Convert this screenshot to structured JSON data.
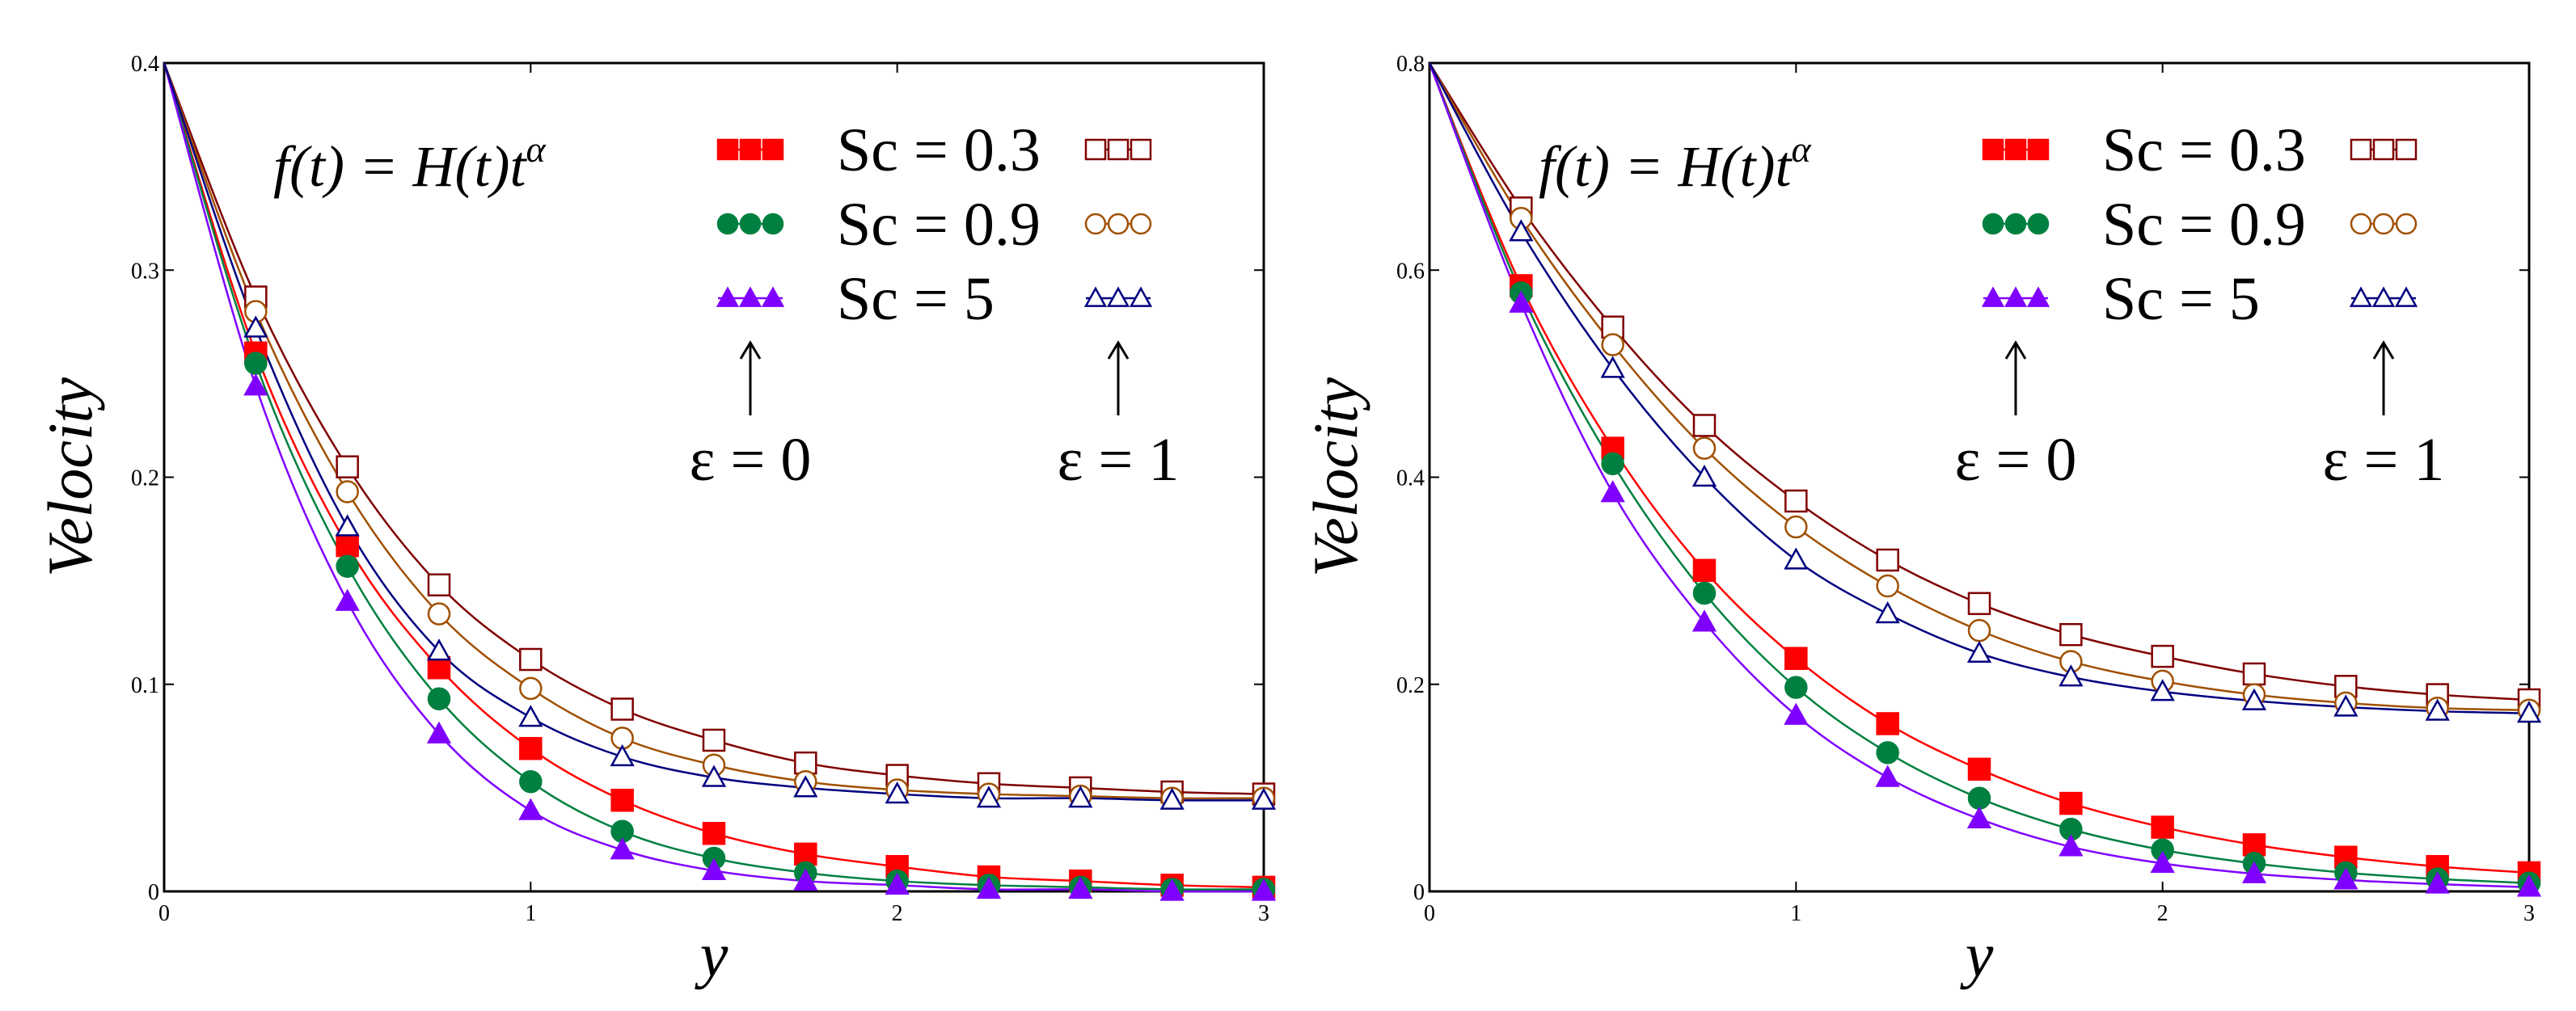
{
  "chart_data": [
    {
      "type": "line",
      "xlabel": "y",
      "ylabel": "Velocity",
      "xlim": [
        0,
        3
      ],
      "ylim": [
        0,
        0.4
      ],
      "x_ticks": [
        "0",
        "1",
        "2",
        "3"
      ],
      "y_ticks": [
        "0",
        "0.1",
        "0.2",
        "0.3",
        "0.4"
      ],
      "annotation": "f(t) = H(t)t^α",
      "eps0_label": "ε = 0",
      "eps1_label": "ε = 1",
      "legend": [
        "Sc = 0.3",
        "Sc = 0.9",
        "Sc = 5"
      ],
      "x": [
        0,
        0.25,
        0.5,
        0.75,
        1.0,
        1.25,
        1.5,
        1.75,
        2.0,
        2.25,
        2.5,
        2.75,
        3.0
      ],
      "series": [
        {
          "name": "Sc = 0.3, ε = 0",
          "color": "#ff0000",
          "marker": "filled-square",
          "values": [
            0.4,
            0.26,
            0.167,
            0.108,
            0.069,
            0.044,
            0.028,
            0.018,
            0.012,
            0.007,
            0.005,
            0.003,
            0.002
          ]
        },
        {
          "name": "Sc = 0.9, ε = 0",
          "color": "#008040",
          "marker": "filled-circle",
          "values": [
            0.4,
            0.255,
            0.157,
            0.093,
            0.053,
            0.029,
            0.016,
            0.009,
            0.005,
            0.003,
            0.002,
            0.001,
            0.001
          ]
        },
        {
          "name": "Sc = 5, ε = 0",
          "color": "#8000ff",
          "marker": "filled-triangle",
          "values": [
            0.4,
            0.244,
            0.14,
            0.076,
            0.039,
            0.02,
            0.01,
            0.005,
            0.003,
            0.001,
            0.001,
            0.0,
            0.0
          ]
        },
        {
          "name": "Sc = 0.3, ε = 1",
          "color": "#800000",
          "marker": "open-square",
          "values": [
            0.4,
            0.287,
            0.205,
            0.148,
            0.112,
            0.088,
            0.073,
            0.062,
            0.056,
            0.052,
            0.05,
            0.048,
            0.047
          ]
        },
        {
          "name": "Sc = 0.9, ε = 1",
          "color": "#a05000",
          "marker": "open-circle",
          "values": [
            0.4,
            0.28,
            0.193,
            0.134,
            0.098,
            0.074,
            0.061,
            0.053,
            0.049,
            0.047,
            0.046,
            0.045,
            0.045
          ]
        },
        {
          "name": "Sc = 5, ε = 1",
          "color": "#000080",
          "marker": "open-triangle",
          "values": [
            0.4,
            0.272,
            0.176,
            0.116,
            0.084,
            0.065,
            0.055,
            0.05,
            0.047,
            0.045,
            0.045,
            0.044,
            0.044
          ]
        }
      ]
    },
    {
      "type": "line",
      "xlabel": "y",
      "ylabel": "Velocity",
      "xlim": [
        0,
        3
      ],
      "ylim": [
        0,
        0.8
      ],
      "x_ticks": [
        "0",
        "1",
        "2",
        "3"
      ],
      "y_ticks": [
        "0",
        "0.2",
        "0.4",
        "0.6",
        "0.8"
      ],
      "annotation": "f(t) = H(t)t^α",
      "eps0_label": "ε = 0",
      "eps1_label": "ε = 1",
      "legend": [
        "Sc = 0.3",
        "Sc = 0.9",
        "Sc = 5"
      ],
      "x": [
        0,
        0.25,
        0.5,
        0.75,
        1.0,
        1.25,
        1.5,
        1.75,
        2.0,
        2.25,
        2.5,
        2.75,
        3.0
      ],
      "series": [
        {
          "name": "Sc = 0.3, ε = 0",
          "color": "#ff0000",
          "marker": "filled-square",
          "values": [
            0.8,
            0.585,
            0.428,
            0.31,
            0.225,
            0.162,
            0.118,
            0.085,
            0.062,
            0.045,
            0.033,
            0.024,
            0.018
          ]
        },
        {
          "name": "Sc = 0.9, ε = 0",
          "color": "#008040",
          "marker": "filled-circle",
          "values": [
            0.8,
            0.578,
            0.413,
            0.288,
            0.197,
            0.134,
            0.09,
            0.06,
            0.04,
            0.027,
            0.018,
            0.012,
            0.008
          ]
        },
        {
          "name": "Sc = 5, ε = 0",
          "color": "#8000ff",
          "marker": "filled-triangle",
          "values": [
            0.8,
            0.568,
            0.385,
            0.26,
            0.17,
            0.11,
            0.07,
            0.043,
            0.027,
            0.017,
            0.011,
            0.007,
            0.004
          ]
        },
        {
          "name": "Sc = 0.3, ε = 1",
          "color": "#800000",
          "marker": "open-square",
          "values": [
            0.8,
            0.66,
            0.545,
            0.45,
            0.377,
            0.32,
            0.278,
            0.248,
            0.227,
            0.21,
            0.198,
            0.19,
            0.185
          ]
        },
        {
          "name": "Sc = 0.9, ε = 1",
          "color": "#a05000",
          "marker": "open-circle",
          "values": [
            0.8,
            0.65,
            0.528,
            0.428,
            0.352,
            0.295,
            0.252,
            0.222,
            0.203,
            0.19,
            0.182,
            0.177,
            0.175
          ]
        },
        {
          "name": "Sc = 5, ε = 1",
          "color": "#000080",
          "marker": "open-triangle",
          "values": [
            0.8,
            0.637,
            0.505,
            0.4,
            0.32,
            0.268,
            0.23,
            0.207,
            0.193,
            0.184,
            0.178,
            0.174,
            0.172
          ]
        }
      ]
    }
  ]
}
